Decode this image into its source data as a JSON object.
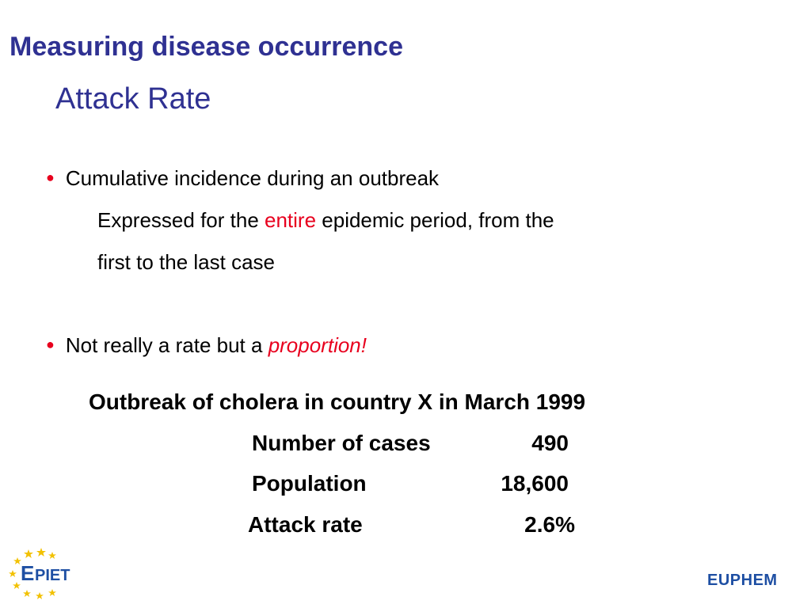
{
  "slide": {
    "title": "Measuring disease occurrence",
    "subtitle": "Attack Rate",
    "bullets": [
      {
        "text": "Cumulative incidence during an outbreak",
        "detail": {
          "line1_before": "Expressed for the ",
          "line1_emphasis": "entire",
          "line1_after": " epidemic period, from the",
          "line2": "first to the last case"
        }
      },
      {
        "text_before": "Not really a rate but a ",
        "text_emphasis": "proportion!"
      }
    ],
    "table": {
      "title": "Outbreak of cholera in country X in March 1999",
      "rows": [
        {
          "label": "Number of cases",
          "value": "490"
        },
        {
          "label": "Population",
          "value": "18,600"
        },
        {
          "label": "Attack rate",
          "value": "2.6%"
        }
      ]
    },
    "logos": {
      "left": "EPIET",
      "right": "EUPHEM"
    },
    "colors": {
      "title": "#2f3192",
      "emphasis": "#e8001e",
      "bullet_dot": "#e8001e",
      "logo_star": "#f2c100",
      "logo_text": "#1e4fa3"
    }
  }
}
